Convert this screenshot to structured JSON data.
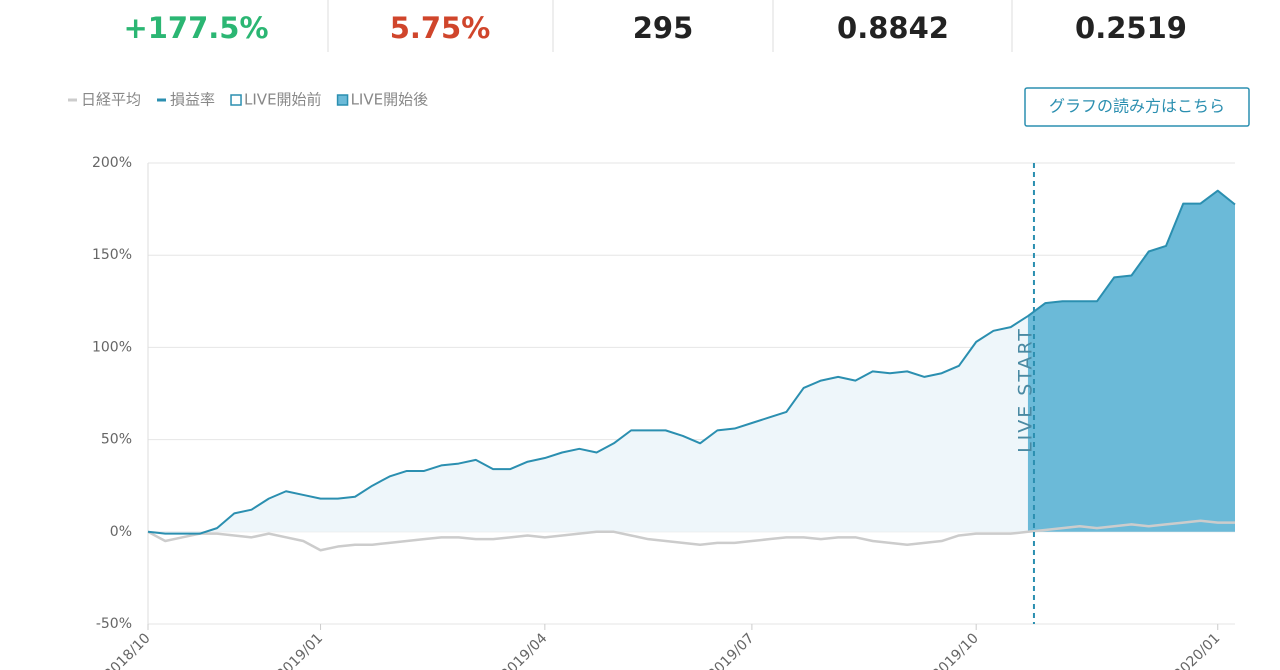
{
  "stats": [
    {
      "text": "+177.5%",
      "color": "#2bb673"
    },
    {
      "text": "5.75%",
      "color": "#d0452b"
    },
    {
      "text": "295",
      "color": "#222222"
    },
    {
      "text": "0.8842",
      "color": "#222222"
    },
    {
      "text": "0.2519",
      "color": "#222222"
    }
  ],
  "button": "グラフの読み方はこちら",
  "chart_data": {
    "type": "line",
    "legend": "top-left",
    "grid": true,
    "categories": [
      "2018/10",
      null,
      null,
      null,
      null,
      null,
      null,
      null,
      null,
      null,
      "2019/01",
      null,
      null,
      null,
      null,
      null,
      null,
      null,
      null,
      null,
      null,
      null,
      null,
      "2019/04",
      null,
      null,
      null,
      null,
      null,
      null,
      null,
      null,
      null,
      null,
      null,
      "2019/07",
      null,
      null,
      null,
      null,
      null,
      null,
      null,
      null,
      null,
      null,
      null,
      null,
      "2019/10",
      null,
      null,
      null,
      null,
      null,
      null,
      null,
      null,
      null,
      null,
      null,
      null,
      null,
      "2020/01",
      null
    ],
    "series": [
      {
        "name": "日経平均",
        "color": "#cccccc",
        "values": [
          0,
          -5,
          -3,
          -1,
          -1,
          -2,
          -3,
          -1,
          -3,
          -5,
          -10,
          -8,
          -7,
          -7,
          -6,
          -5,
          -4,
          -3,
          -3,
          -4,
          -4,
          -3,
          -2,
          -3,
          -2,
          -1,
          0,
          0,
          -2,
          -4,
          -5,
          -6,
          -7,
          -6,
          -6,
          -5,
          -4,
          -3,
          -3,
          -4,
          -3,
          -3,
          -5,
          -6,
          -7,
          -6,
          -5,
          -2,
          -1,
          -1,
          -1,
          0,
          1,
          2,
          3,
          2,
          3,
          4,
          3,
          4,
          5,
          6,
          5,
          5
        ]
      },
      {
        "name": "損益率",
        "color": "#2b8fb0",
        "values": [
          0,
          -1,
          -1,
          -1,
          2,
          10,
          12,
          18,
          22,
          20,
          18,
          18,
          19,
          25,
          30,
          33,
          33,
          36,
          37,
          39,
          34,
          34,
          38,
          40,
          43,
          45,
          43,
          48,
          55,
          55,
          55,
          52,
          48,
          55,
          56,
          59,
          62,
          65,
          78,
          82,
          84,
          82,
          87,
          86,
          87,
          84,
          86,
          90,
          103,
          109,
          111,
          117,
          124,
          125,
          125,
          125,
          138,
          139,
          152,
          155,
          178,
          178,
          185,
          177.5
        ]
      }
    ],
    "areas": [
      {
        "name": "LIVE開始前",
        "color": "#eef6fa",
        "stroke": "#2b8fb0"
      },
      {
        "name": "LIVE開始後",
        "color": "#6bbad8",
        "stroke": "#2b8fb0"
      }
    ],
    "annotation": {
      "text": "LIVE START",
      "x": 51
    },
    "ylim": [
      -50,
      200
    ],
    "yticks": [
      {
        "value": -50,
        "label": "-50%"
      },
      {
        "value": 0,
        "label": "0%"
      },
      {
        "value": 50,
        "label": "50%"
      },
      {
        "value": 100,
        "label": "100%"
      },
      {
        "value": 150,
        "label": "150%"
      },
      {
        "value": 200,
        "label": "200%"
      }
    ]
  }
}
